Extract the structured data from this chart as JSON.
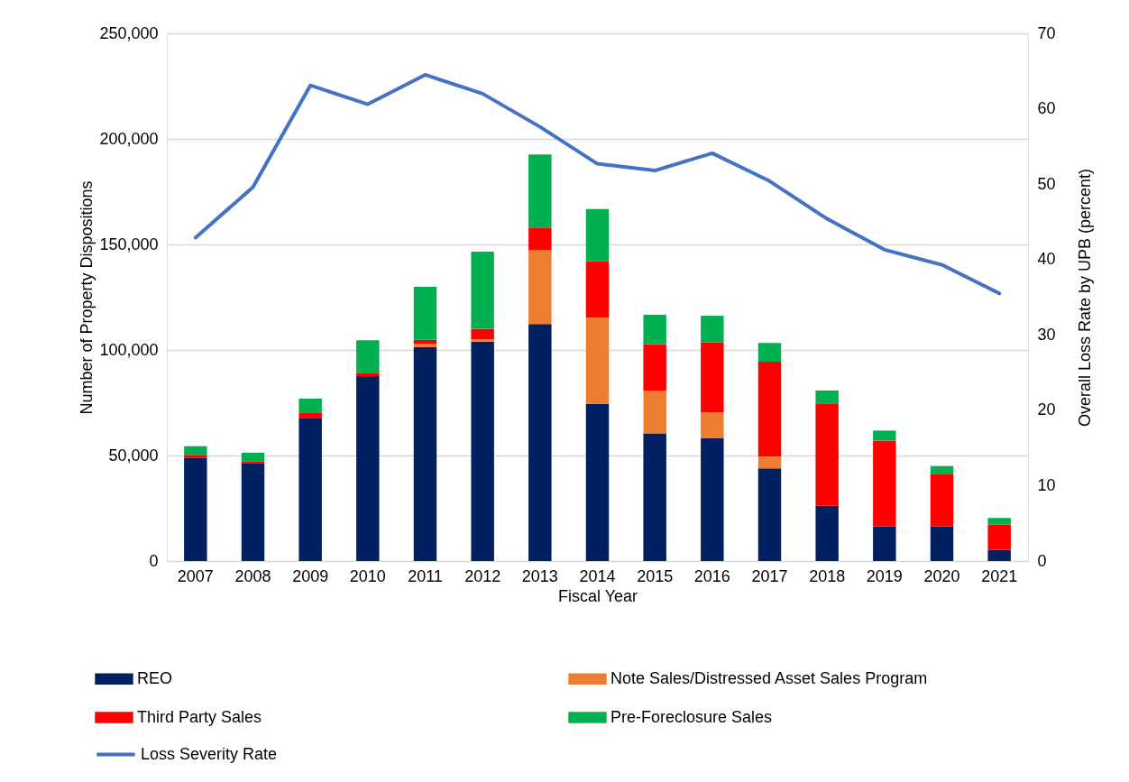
{
  "chart_data": {
    "type": "bar",
    "stacked": true,
    "xlabel": "Fiscal Year",
    "ylabel": "Number of Property Dispositions",
    "y2label": "Overall Loss Rate by UPB (percent)",
    "categories": [
      "2007",
      "2008",
      "2009",
      "2010",
      "2011",
      "2012",
      "2013",
      "2014",
      "2015",
      "2016",
      "2017",
      "2018",
      "2019",
      "2020",
      "2021"
    ],
    "series": [
      {
        "name": "REO",
        "color": "#002060",
        "values": [
          48800,
          46200,
          67800,
          87600,
          101300,
          104000,
          112300,
          74500,
          60500,
          58100,
          43900,
          26200,
          16500,
          16500,
          5300
        ]
      },
      {
        "name": "Note Sales/Distressed Asset Sales Program",
        "color": "#ed7d31",
        "values": [
          null,
          null,
          null,
          null,
          1700,
          1100,
          35100,
          40900,
          20300,
          12400,
          5700,
          null,
          null,
          null,
          null
        ]
      },
      {
        "name": "Third Party Sales",
        "color": "#ff0000",
        "values": [
          1500,
          1100,
          2600,
          1600,
          1800,
          4900,
          10600,
          26600,
          21900,
          33000,
          44800,
          48500,
          40600,
          24800,
          11900
        ]
      },
      {
        "name": "Pre-Foreclosure Sales",
        "color": "#00b050",
        "values": [
          4100,
          4000,
          6500,
          15400,
          25100,
          36600,
          34600,
          24800,
          14000,
          12700,
          8900,
          6100,
          4700,
          3700,
          3200
        ]
      },
      {
        "name": "Loss Severity Rate",
        "color": "#4472c4",
        "type": "line",
        "axis": "y2",
        "values": [
          42.9,
          49.6,
          63.1,
          60.6,
          64.5,
          62.0,
          57.6,
          52.7,
          51.8,
          54.1,
          50.4,
          45.4,
          41.3,
          39.3,
          35.5
        ]
      }
    ],
    "ylim": [
      0,
      250000
    ],
    "yticks": [
      0,
      {
        "value": 50000,
        "label": "50,000"
      },
      {
        "value": 100000,
        "label": "100,000"
      },
      {
        "value": 150000,
        "label": "150,000"
      },
      {
        "value": 200000,
        "label": "200,000"
      },
      {
        "value": 250000,
        "label": "250,000"
      }
    ],
    "y2lim": [
      0,
      70
    ],
    "y2ticks": [
      0,
      10,
      20,
      30,
      40,
      50,
      60,
      70
    ],
    "grid": "y",
    "legend": "bottom"
  }
}
